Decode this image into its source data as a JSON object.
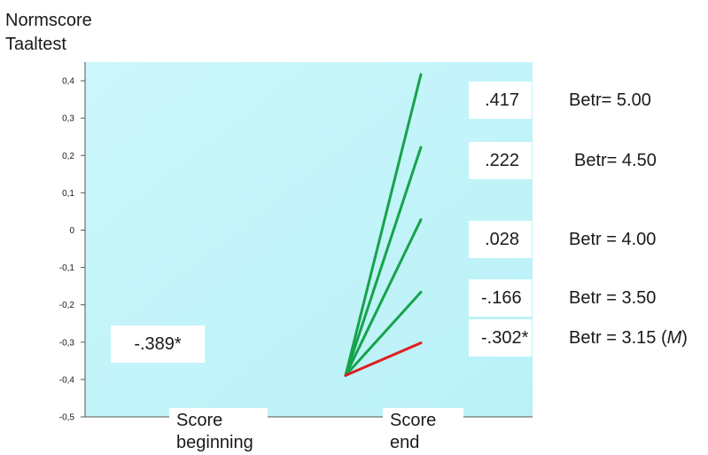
{
  "chart_data": {
    "type": "line",
    "ylabel": [
      "Normscore",
      "Taaltest"
    ],
    "categories": [
      "Score beginning",
      "Score end"
    ],
    "ylim": [
      -0.5,
      0.45
    ],
    "yticks": [
      0.4,
      0.3,
      0.2,
      0.1,
      0,
      -0.1,
      -0.2,
      -0.3,
      -0.4,
      -0.5
    ],
    "ytick_labels": [
      "0,4",
      "0,3",
      "0,2",
      "0,1",
      "0",
      "-0,1",
      "-0,2",
      "-0,3",
      "-0,4",
      "-0,5"
    ],
    "start_value": -0.389,
    "start_label": "-.389*",
    "series": [
      {
        "values": [
          -0.389,
          0.417
        ],
        "value_label": ".417",
        "betr_label": "Betr= 5.00",
        "betr_mean": "",
        "color": "#16a34a"
      },
      {
        "values": [
          -0.389,
          0.222
        ],
        "value_label": ".222",
        "betr_label": "Betr= 4.50",
        "betr_mean": "",
        "color": "#16a34a"
      },
      {
        "values": [
          -0.389,
          0.028
        ],
        "value_label": ".028",
        "betr_label": "Betr = 4.00",
        "betr_mean": "",
        "color": "#16a34a"
      },
      {
        "values": [
          -0.389,
          -0.166
        ],
        "value_label": "-.166",
        "betr_label": "Betr = 3.50",
        "betr_mean": "",
        "color": "#16a34a"
      },
      {
        "values": [
          -0.389,
          -0.302
        ],
        "value_label": "-.302*",
        "betr_label": "Betr = 3.15 (",
        "betr_mean": "M",
        "betr_suffix": ")",
        "color": "#e11d1d"
      }
    ],
    "grid": false,
    "background_gradient": [
      "#ccf7fb",
      "#b9f1f7"
    ]
  }
}
